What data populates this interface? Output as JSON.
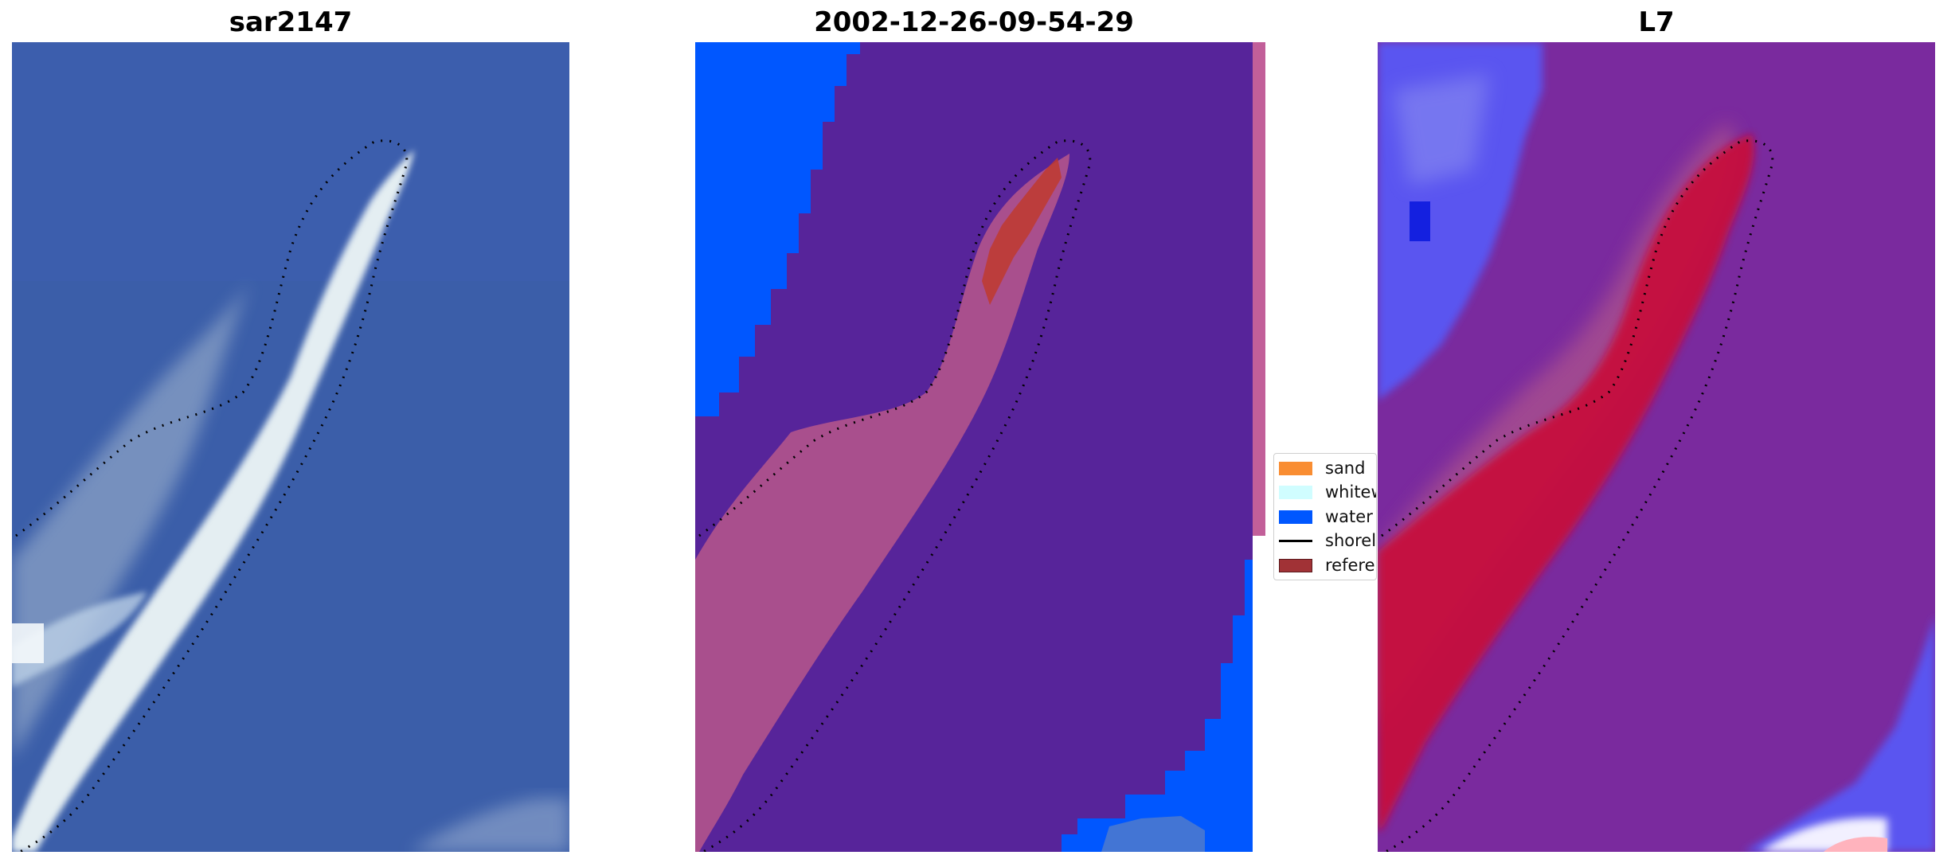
{
  "panels": [
    {
      "title": "sar2147"
    },
    {
      "title": "2002-12-26-09-54-29"
    },
    {
      "title": "L7"
    }
  ],
  "legend": {
    "items": [
      {
        "label": "sand",
        "color": "#f98d32"
      },
      {
        "label": "whitew",
        "color": "#d0fdff"
      },
      {
        "label": "water",
        "color": "#0057ff"
      },
      {
        "label": "shorel",
        "color": "#000000"
      },
      {
        "label": "referen",
        "color": "#a13236"
      }
    ]
  },
  "colors": {
    "rgb_water": "#3b5ea9",
    "rgb_shoal": "#e4eef2",
    "class_background": "#57249a",
    "class_water": "#0057ff",
    "class_sand_overlay": "#b0548c",
    "class_reference": "#c0392e",
    "prob_background": "#7a2a9e",
    "prob_high": "#c8103a",
    "prob_low": "#5a55f0"
  }
}
